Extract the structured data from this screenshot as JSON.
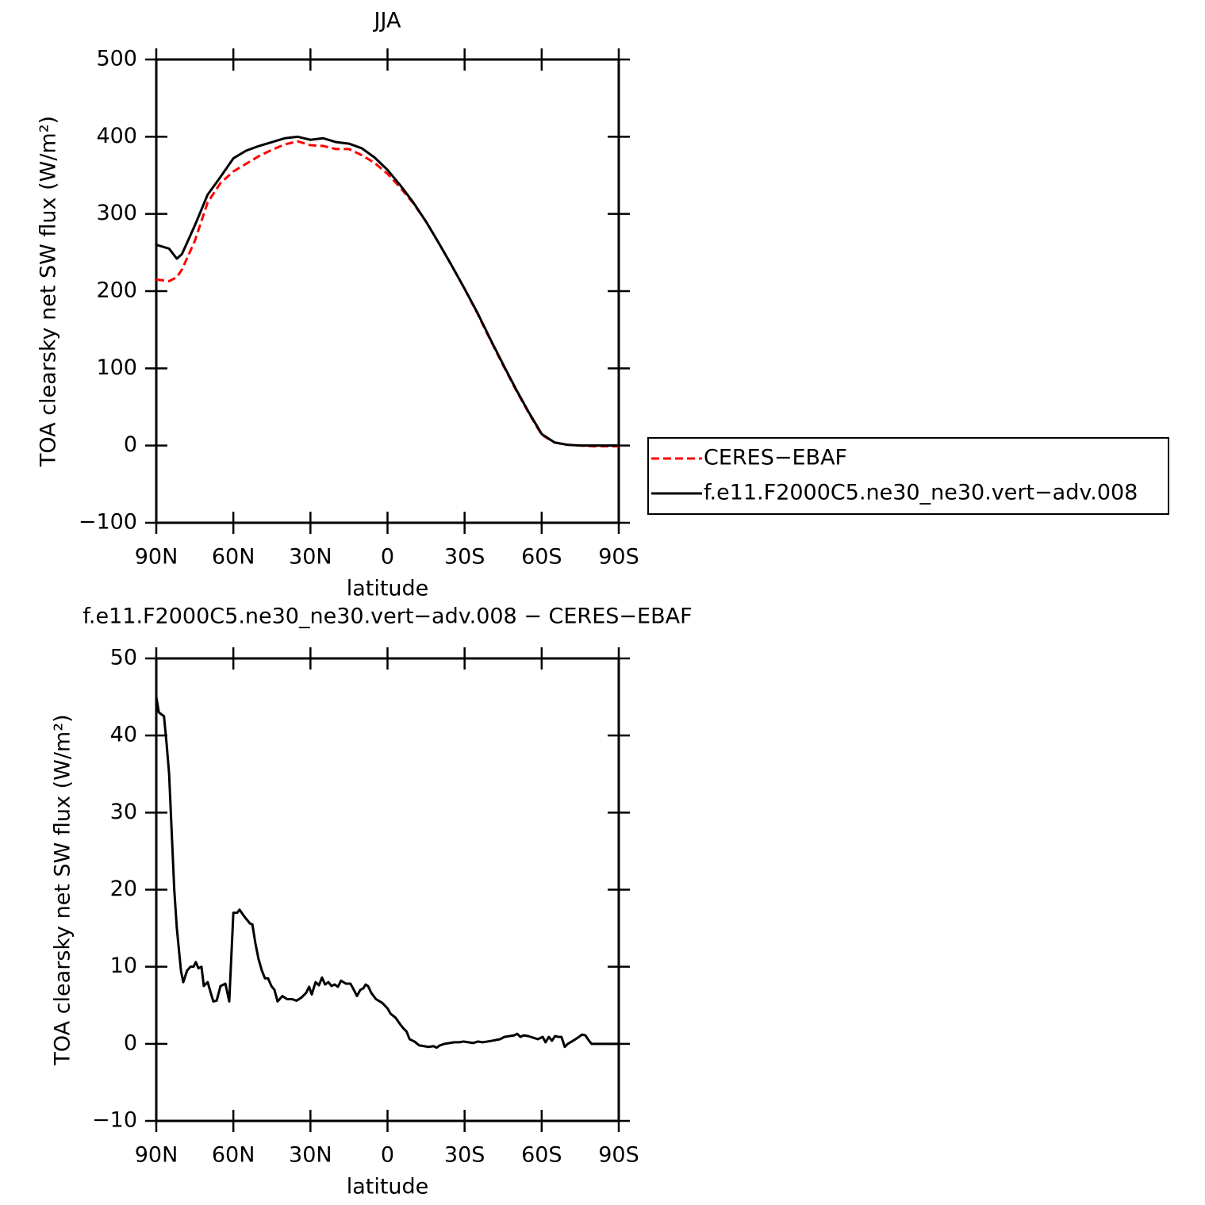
{
  "chart_data": [
    {
      "type": "line",
      "title": "JJA",
      "xlabel": "latitude",
      "ylabel": "TOA clearsky net SW flux (W/m²)",
      "x": [
        90,
        85,
        82,
        80,
        75,
        70,
        65,
        60,
        55,
        50,
        45,
        40,
        35,
        30,
        25,
        20,
        15,
        10,
        5,
        0,
        -5,
        -10,
        -15,
        -20,
        -25,
        -30,
        -35,
        -40,
        -45,
        -50,
        -55,
        -60,
        -65,
        -70,
        -75,
        -80,
        -85,
        -90
      ],
      "series": [
        {
          "name": "CERES−EBAF",
          "color": "#ff0000",
          "linestyle": "dashed",
          "values": [
            215,
            213,
            218,
            228,
            265,
            315,
            340,
            355,
            365,
            375,
            383,
            390,
            394,
            389,
            388,
            384,
            384,
            376,
            366,
            352,
            334,
            314,
            290,
            262,
            233,
            203,
            171,
            137,
            104,
            72,
            42,
            14,
            4,
            1,
            0,
            -1,
            -1,
            -1
          ]
        },
        {
          "name": "f.e11.F2000C5.ne30_ne30.vert−adv.008",
          "color": "#000000",
          "linestyle": "solid",
          "values": [
            260,
            255,
            242,
            248,
            285,
            325,
            348,
            372,
            382,
            388,
            393,
            398,
            400,
            396,
            398,
            393,
            391,
            385,
            373,
            357,
            337,
            315,
            290,
            262,
            233,
            203,
            172,
            138,
            105,
            73,
            43,
            15,
            4,
            1,
            0,
            0,
            0,
            0
          ]
        }
      ],
      "xlim": [
        90,
        -90
      ],
      "xticks": [
        {
          "value": 90,
          "label": "90N"
        },
        {
          "value": 60,
          "label": "60N"
        },
        {
          "value": 30,
          "label": "30N"
        },
        0,
        {
          "value": -30,
          "label": "30S"
        },
        {
          "value": -60,
          "label": "60S"
        },
        {
          "value": -90,
          "label": "90S"
        }
      ],
      "ylim": [
        -100,
        500
      ],
      "yticks": [
        {
          "value": -100,
          "label": "−100"
        },
        0,
        100,
        200,
        300,
        400,
        500
      ],
      "legend": "right"
    },
    {
      "type": "line",
      "title": "f.e11.F2000C5.ne30_ne30.vert−adv.008 − CERES−EBAF",
      "xlabel": "latitude",
      "ylabel": "TOA clearsky net SW flux (W/m²)",
      "x": [
        90,
        89,
        87,
        86,
        85,
        83,
        82,
        80.4,
        79.5,
        78,
        76.7,
        75.5,
        74.6,
        73.6,
        72.4,
        71.5,
        70,
        68.7,
        67.8,
        66.5,
        65,
        63.1,
        61.6,
        60,
        58.5,
        57.6,
        55.7,
        53.5,
        52.6,
        51.4,
        50.2,
        48.9,
        47.7,
        46.5,
        45.2,
        44,
        42.8,
        40.9,
        39.1,
        37.2,
        35.4,
        33.5,
        31.7,
        30.5,
        29.5,
        28,
        26.7,
        25.5,
        24.3,
        23,
        21.8,
        20.6,
        19.3,
        18.1,
        16.2,
        14.4,
        13.1,
        11.9,
        10.6,
        9.4,
        8.5,
        7.6,
        6.3,
        4.5,
        2,
        0,
        -1.2,
        -3.1,
        -5,
        -6.2,
        -7.4,
        -8.6,
        -10.5,
        -12.3,
        -14.2,
        -16,
        -17.9,
        -19.1,
        -20.4,
        -22.2,
        -24.1,
        -25.9,
        -27.8,
        -29.6,
        -31.5,
        -33.3,
        -35.2,
        -37,
        -38.9,
        -40.7,
        -43.8,
        -45.5,
        -47.4,
        -49.3,
        -50.5,
        -51.7,
        -53,
        -54.8,
        -56.7,
        -58.5,
        -60.4,
        -61.5,
        -62.8,
        -64,
        -65.2,
        -66.5,
        -67.7,
        -69,
        -70.2,
        -72.7,
        -74.5,
        -75.7,
        -77,
        -78.2,
        -79.4,
        -80.6,
        -90
      ],
      "values": [
        45,
        43,
        42.5,
        39,
        35,
        20,
        15,
        9.5,
        8,
        9.5,
        10,
        10,
        10.6,
        9.8,
        10,
        7.5,
        8,
        6.5,
        5.5,
        5.6,
        7.5,
        7.8,
        5.5,
        17,
        17,
        17.4,
        16.5,
        15.6,
        15.5,
        13,
        11,
        9.5,
        8.5,
        8.5,
        7.5,
        7,
        5.5,
        6.2,
        5.8,
        5.8,
        5.6,
        6,
        6.6,
        7.4,
        6.4,
        8,
        7.6,
        8.6,
        7.7,
        8,
        7.5,
        7.7,
        7.4,
        8.2,
        7.8,
        7.8,
        7,
        6.2,
        7,
        7.2,
        7.7,
        7.5,
        6.6,
        5.8,
        5.3,
        4.6,
        3.9,
        3.4,
        2.5,
        2,
        1.6,
        0.6,
        0.3,
        -0.2,
        -0.3,
        -0.4,
        -0.3,
        -0.5,
        -0.2,
        0,
        0.1,
        0.2,
        0.2,
        0.3,
        0.2,
        0.1,
        0.3,
        0.2,
        0.3,
        0.4,
        0.6,
        0.9,
        1,
        1.1,
        1.3,
        0.9,
        1.1,
        1.0,
        0.8,
        0.6,
        0.9,
        0.2,
        0.9,
        0.4,
        1,
        0.9,
        0.9,
        -0.4,
        0,
        0.5,
        0.9,
        1.2,
        1.1,
        0.5,
        0,
        0,
        0
      ],
      "color": "#000000",
      "xlim": [
        90,
        -90
      ],
      "xticks": [
        {
          "value": 90,
          "label": "90N"
        },
        {
          "value": 60,
          "label": "60N"
        },
        {
          "value": 30,
          "label": "30N"
        },
        0,
        {
          "value": -30,
          "label": "30S"
        },
        {
          "value": -60,
          "label": "60S"
        },
        {
          "value": -90,
          "label": "90S"
        }
      ],
      "ylim": [
        -10,
        50
      ],
      "yticks": [
        {
          "value": -10,
          "label": "−10"
        },
        0,
        10,
        20,
        30,
        40,
        50
      ]
    }
  ]
}
